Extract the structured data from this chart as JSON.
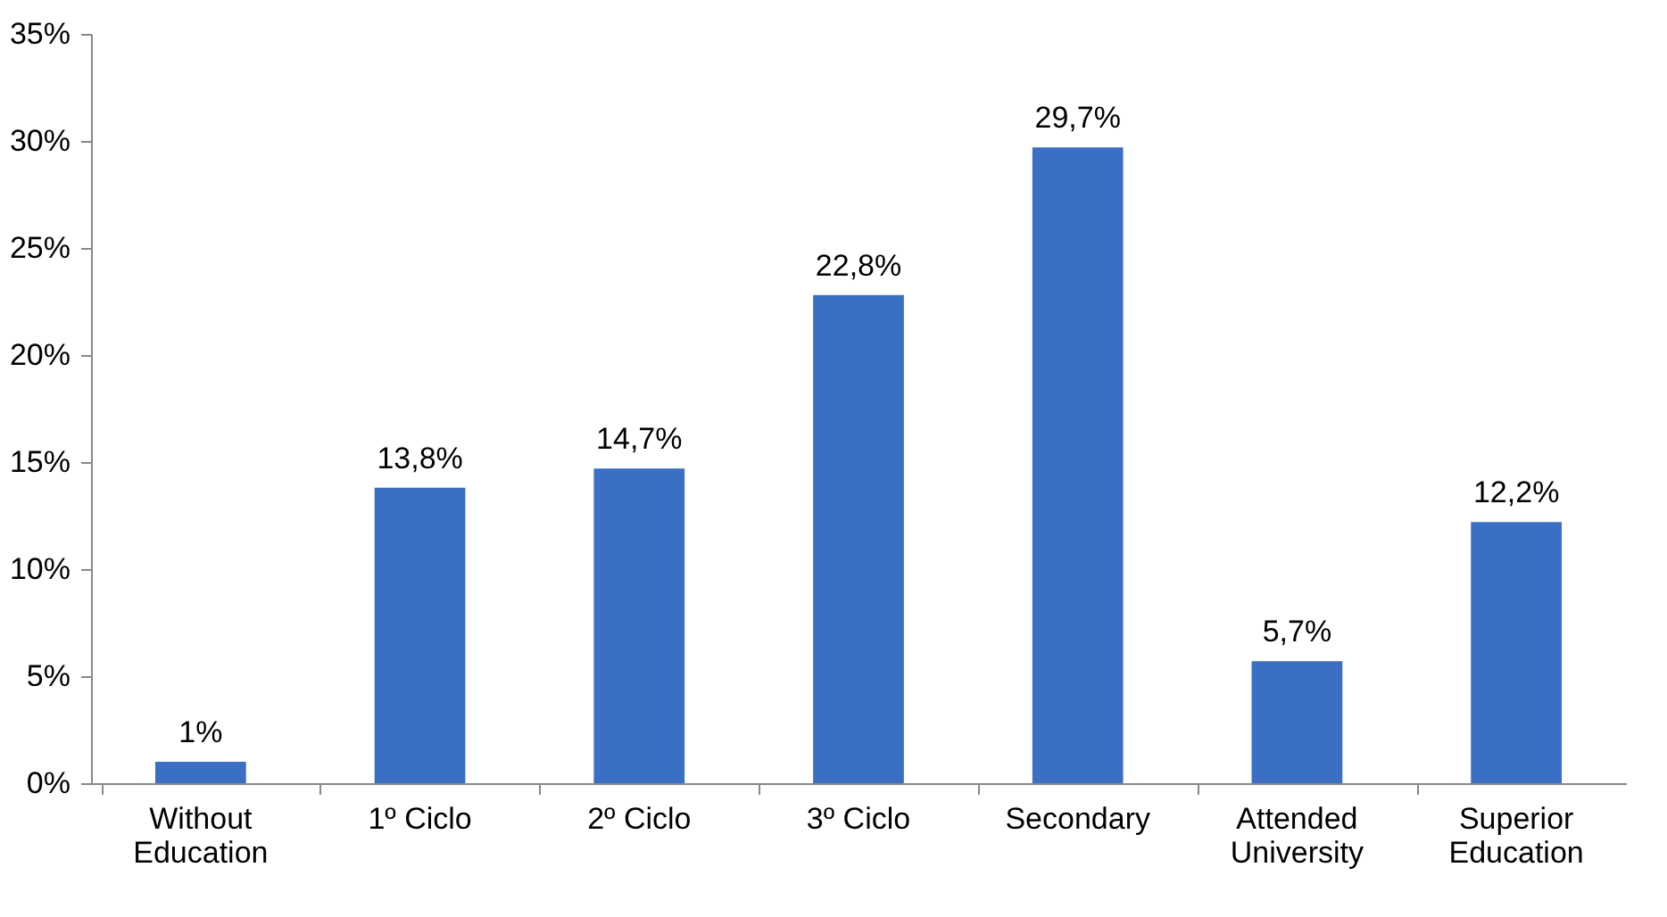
{
  "chart_data": {
    "type": "bar",
    "categories": [
      "Without Education",
      "1º Ciclo",
      "2º Ciclo",
      "3º Ciclo",
      "Secondary",
      "Attended University",
      "Superior Education"
    ],
    "values": [
      1,
      13.8,
      14.7,
      22.8,
      29.7,
      5.7,
      12.2
    ],
    "value_labels": [
      "1%",
      "13,8%",
      "14,7%",
      "22,8%",
      "29,7%",
      "5,7%",
      "12,2%"
    ],
    "color": "#3a6fc4",
    "ylim": [
      0,
      35
    ],
    "yticks": [
      {
        "value": 0,
        "label": "0%"
      },
      {
        "value": 5,
        "label": "5%"
      },
      {
        "value": 10,
        "label": "10%"
      },
      {
        "value": 15,
        "label": "15%"
      },
      {
        "value": 20,
        "label": "20%"
      },
      {
        "value": 25,
        "label": "25%"
      },
      {
        "value": 30,
        "label": "30%"
      },
      {
        "value": 35,
        "label": "35%"
      }
    ],
    "grid": false
  }
}
